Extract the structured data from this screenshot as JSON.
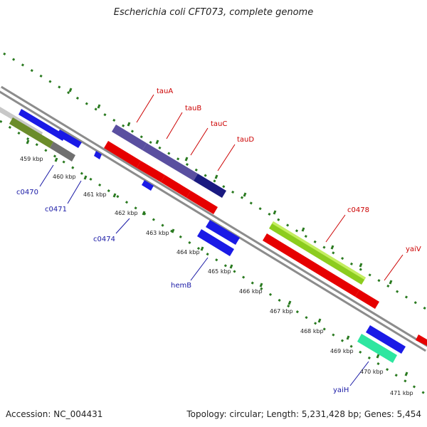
{
  "title": "Escherichia coli CFT073, complete genome",
  "footer": {
    "accession": "Accession: NC_004431",
    "topology": "Topology: circular; Length: 5,231,428 bp; Genes: 5,454"
  },
  "colors": {
    "backbone": "#8c8c8c",
    "tick_major": "#2a7a20",
    "tick_minor": "#2a7a20",
    "label_forward": "#cc0000",
    "label_reverse": "#1a1aa6"
  },
  "kbp_labels": [
    "459 kbp",
    "460 kbp",
    "461 kbp",
    "462 kbp",
    "463 kbp",
    "464 kbp",
    "465 kbp",
    "466 kbp",
    "467 kbp",
    "468 kbp",
    "469 kbp",
    "470 kbp",
    "471 kbp"
  ],
  "forward_gene_labels": [
    "tauA",
    "tauB",
    "tauC",
    "tauD",
    "c0478",
    "yaiV"
  ],
  "reverse_gene_labels": [
    "c0470",
    "c0471",
    "c0474",
    "hemB",
    "yaiH"
  ]
}
